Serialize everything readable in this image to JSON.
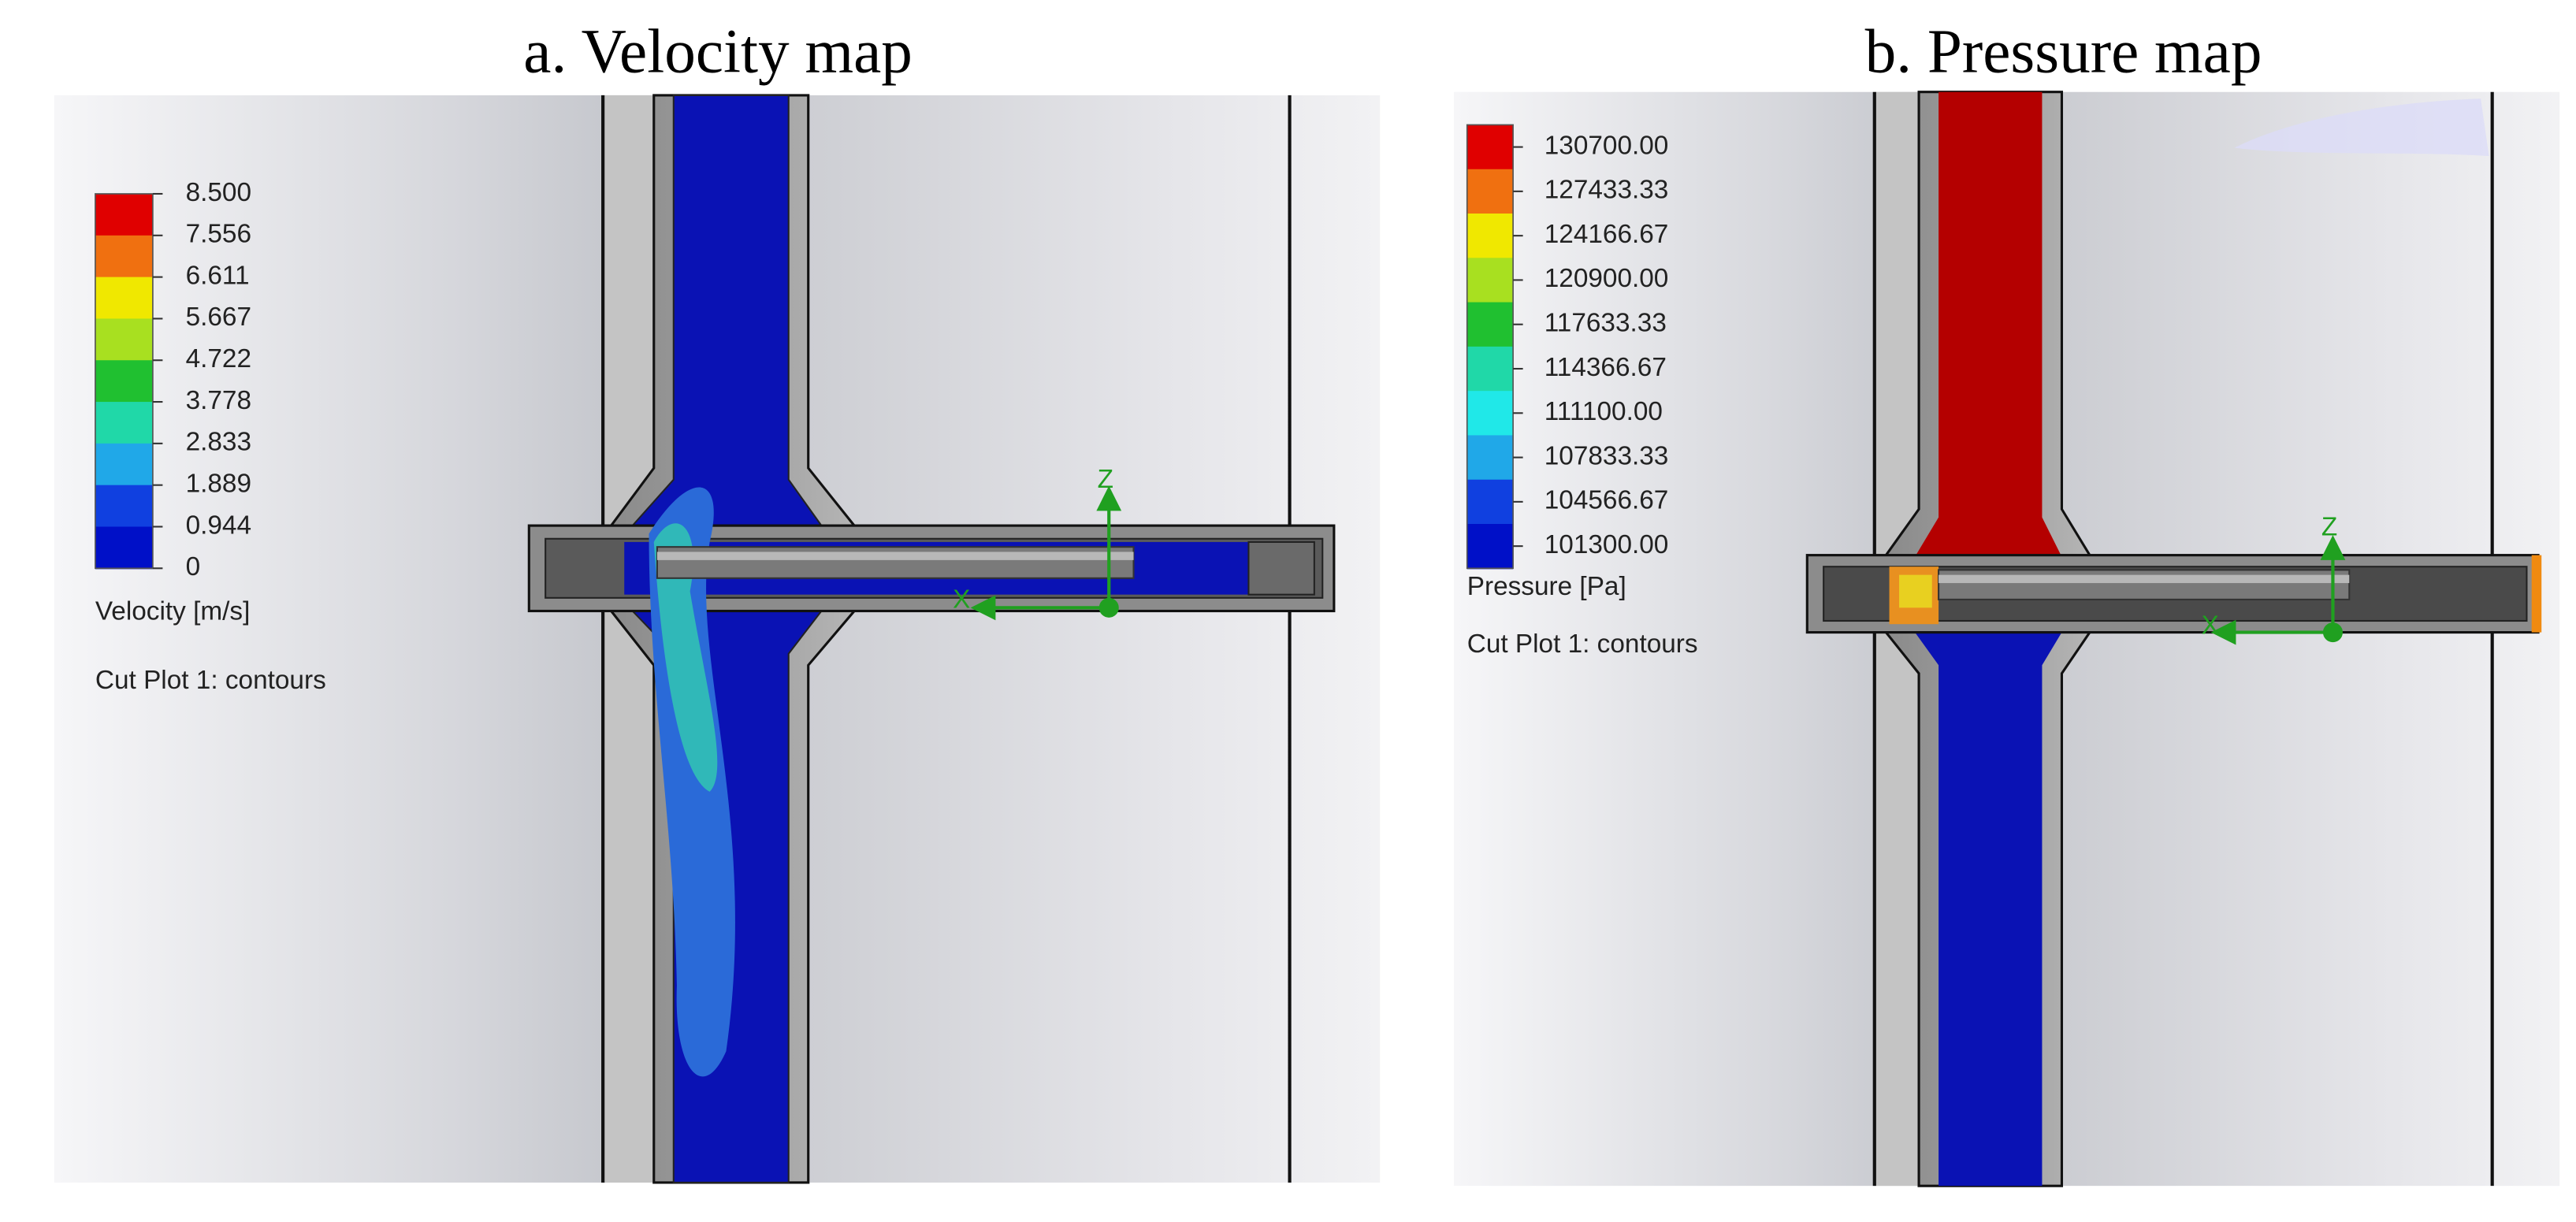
{
  "panels": [
    {
      "title": "a. Velocity map",
      "legend": {
        "ticks": [
          "8.500",
          "7.556",
          "6.611",
          "5.667",
          "4.722",
          "3.778",
          "2.833",
          "1.889",
          "0.944",
          "0"
        ],
        "colors": [
          "#e00000",
          "#f07010",
          "#f0e800",
          "#a8e020",
          "#20c030",
          "#20d8a8",
          "#20a8e8",
          "#1040e0",
          "#0010c8"
        ],
        "quantity": "Velocity [m/s]",
        "plot": "Cut Plot 1: contours"
      },
      "axes": [
        "Z",
        "X"
      ]
    },
    {
      "title": "b. Pressure map",
      "legend": {
        "ticks": [
          "130700.00",
          "127433.33",
          "124166.67",
          "120900.00",
          "117633.33",
          "114366.67",
          "111100.00",
          "107833.33",
          "104566.67",
          "101300.00"
        ],
        "colors": [
          "#e00000",
          "#f07010",
          "#f0e800",
          "#a8e020",
          "#20c030",
          "#20d8a8",
          "#20e8e8",
          "#20a8e8",
          "#1040e0",
          "#0010c8"
        ],
        "quantity": "Pressure [Pa]",
        "plot": "Cut Plot 1: contours"
      },
      "axes": [
        "Z",
        "X"
      ]
    }
  ]
}
